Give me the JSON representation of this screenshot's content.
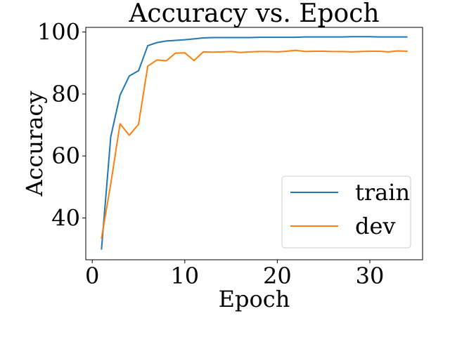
{
  "chart_data": {
    "type": "line",
    "title": "Accuracy vs. Epoch",
    "xlabel": "Epoch",
    "ylabel": "Accuracy",
    "xlim": [
      -0.7,
      35.7
    ],
    "ylim": [
      26.5,
      101.5
    ],
    "xticks": [
      0,
      10,
      20,
      30
    ],
    "yticks": [
      40,
      60,
      80,
      100
    ],
    "grid": false,
    "legend_position": "lower-right",
    "x": [
      1,
      2,
      3,
      4,
      5,
      6,
      7,
      8,
      9,
      10,
      11,
      12,
      13,
      14,
      15,
      16,
      17,
      18,
      19,
      20,
      21,
      22,
      23,
      24,
      25,
      26,
      27,
      28,
      29,
      30,
      31,
      32,
      33,
      34
    ],
    "series": [
      {
        "name": "train",
        "color": "#1f77b4",
        "values": [
          30.0,
          66.2,
          79.6,
          85.8,
          87.5,
          95.6,
          96.6,
          97.1,
          97.3,
          97.5,
          97.8,
          98.1,
          98.2,
          98.2,
          98.2,
          98.2,
          98.2,
          98.3,
          98.3,
          98.3,
          98.3,
          98.3,
          98.4,
          98.4,
          98.4,
          98.4,
          98.4,
          98.5,
          98.5,
          98.5,
          98.4,
          98.4,
          98.4,
          98.4
        ]
      },
      {
        "name": "dev",
        "color": "#ff7f0e",
        "values": [
          33.5,
          51.0,
          70.4,
          66.7,
          70.2,
          89.0,
          91.0,
          90.7,
          93.2,
          93.3,
          90.8,
          93.6,
          93.5,
          93.6,
          93.7,
          93.4,
          93.6,
          93.7,
          93.7,
          93.6,
          93.8,
          94.1,
          93.7,
          93.8,
          93.8,
          93.7,
          93.7,
          93.6,
          93.7,
          93.8,
          93.8,
          93.6,
          93.9,
          93.8
        ]
      }
    ]
  }
}
